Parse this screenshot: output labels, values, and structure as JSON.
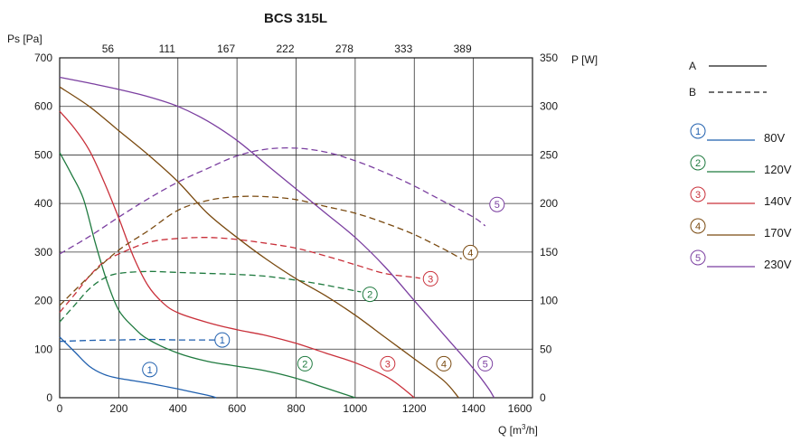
{
  "chart_data": {
    "type": "line",
    "title": "BCS 315L",
    "xlabel_prefix": "Q [m",
    "xlabel_sup": "3",
    "xlabel_suffix": "/h]",
    "ylabel_left": "Ps [Pa]",
    "ylabel_right": "P [W]",
    "xlim": [
      0,
      1600
    ],
    "ylim_left": [
      0,
      700
    ],
    "ylim_right": [
      0,
      350
    ],
    "grid": true,
    "x_ticks": [
      "0",
      "200",
      "400",
      "600",
      "800",
      "1000",
      "1200",
      "1400",
      "1600"
    ],
    "x_tick_values": [
      0,
      200,
      400,
      600,
      800,
      1000,
      1200,
      1400,
      1600
    ],
    "y_left_ticks": [
      "0",
      "100",
      "200",
      "300",
      "400",
      "500",
      "600",
      "700"
    ],
    "y_right_ticks": [
      "0",
      "50",
      "100",
      "150",
      "200",
      "250",
      "300",
      "350"
    ],
    "top_axis_ticks": [
      "56",
      "111",
      "167",
      "222",
      "278",
      "333",
      "389"
    ],
    "top_axis_tick_positions": [
      200,
      400,
      600,
      800,
      1000,
      1200,
      1400
    ],
    "legend_line_styles": [
      {
        "label": "A",
        "style": "solid"
      },
      {
        "label": "B",
        "style": "dashed"
      }
    ],
    "series": [
      {
        "marker": "1",
        "name": "80V",
        "color": "#1f5fae",
        "pressure": [
          [
            0,
            125
          ],
          [
            50,
            95
          ],
          [
            100,
            65
          ],
          [
            150,
            48
          ],
          [
            200,
            40
          ],
          [
            300,
            30
          ],
          [
            400,
            18
          ],
          [
            500,
            5
          ],
          [
            530,
            0
          ]
        ],
        "pressure_label": [
          305,
          58
        ],
        "power": [
          [
            0,
            58
          ],
          [
            100,
            59
          ],
          [
            200,
            59.5
          ],
          [
            300,
            60
          ],
          [
            400,
            59.5
          ],
          [
            500,
            59.5
          ],
          [
            530,
            59.5
          ]
        ],
        "power_label": [
          550,
          59.5
        ]
      },
      {
        "marker": "2",
        "name": "120V",
        "color": "#1f7a3f",
        "pressure": [
          [
            0,
            505
          ],
          [
            40,
            460
          ],
          [
            80,
            410
          ],
          [
            120,
            320
          ],
          [
            160,
            240
          ],
          [
            200,
            180
          ],
          [
            250,
            145
          ],
          [
            300,
            120
          ],
          [
            400,
            92
          ],
          [
            500,
            75
          ],
          [
            600,
            65
          ],
          [
            700,
            55
          ],
          [
            800,
            40
          ],
          [
            900,
            20
          ],
          [
            1000,
            0
          ]
        ],
        "pressure_label": [
          830,
          70
        ],
        "power": [
          [
            0,
            78
          ],
          [
            50,
            95
          ],
          [
            100,
            112
          ],
          [
            150,
            123
          ],
          [
            200,
            128
          ],
          [
            300,
            130
          ],
          [
            400,
            129
          ],
          [
            500,
            128
          ],
          [
            600,
            127
          ],
          [
            700,
            125
          ],
          [
            800,
            121
          ],
          [
            900,
            116
          ],
          [
            1000,
            110
          ],
          [
            1020,
            109
          ]
        ],
        "power_label": [
          1050,
          106.5
        ]
      },
      {
        "marker": "3",
        "name": "140V",
        "color": "#c9303a",
        "pressure": [
          [
            0,
            590
          ],
          [
            50,
            555
          ],
          [
            100,
            510
          ],
          [
            150,
            445
          ],
          [
            200,
            370
          ],
          [
            250,
            290
          ],
          [
            300,
            230
          ],
          [
            350,
            195
          ],
          [
            400,
            175
          ],
          [
            500,
            155
          ],
          [
            600,
            140
          ],
          [
            700,
            128
          ],
          [
            800,
            112
          ],
          [
            900,
            92
          ],
          [
            1000,
            72
          ],
          [
            1100,
            45
          ],
          [
            1150,
            25
          ],
          [
            1200,
            0
          ]
        ],
        "pressure_label": [
          1110,
          70
        ],
        "power": [
          [
            0,
            88
          ],
          [
            50,
            106
          ],
          [
            100,
            125
          ],
          [
            150,
            140
          ],
          [
            200,
            148
          ],
          [
            300,
            160
          ],
          [
            400,
            164
          ],
          [
            500,
            165
          ],
          [
            600,
            163
          ],
          [
            700,
            159
          ],
          [
            800,
            154
          ],
          [
            900,
            146
          ],
          [
            1000,
            137
          ],
          [
            1100,
            128
          ],
          [
            1200,
            124
          ],
          [
            1220,
            123
          ]
        ],
        "power_label": [
          1255,
          122.5
        ]
      },
      {
        "marker": "4",
        "name": "170V",
        "color": "#7a4a10",
        "pressure": [
          [
            0,
            640
          ],
          [
            100,
            600
          ],
          [
            200,
            550
          ],
          [
            300,
            500
          ],
          [
            400,
            445
          ],
          [
            500,
            380
          ],
          [
            600,
            330
          ],
          [
            700,
            285
          ],
          [
            800,
            245
          ],
          [
            900,
            210
          ],
          [
            1000,
            170
          ],
          [
            1100,
            125
          ],
          [
            1200,
            80
          ],
          [
            1300,
            35
          ],
          [
            1350,
            0
          ]
        ],
        "pressure_label": [
          1300,
          70
        ],
        "power": [
          [
            0,
            95
          ],
          [
            100,
            125
          ],
          [
            200,
            152
          ],
          [
            300,
            172
          ],
          [
            400,
            193
          ],
          [
            500,
            203
          ],
          [
            600,
            207
          ],
          [
            700,
            207
          ],
          [
            800,
            204
          ],
          [
            900,
            197
          ],
          [
            1000,
            190
          ],
          [
            1100,
            180
          ],
          [
            1200,
            168
          ],
          [
            1300,
            153
          ],
          [
            1360,
            143
          ]
        ],
        "power_label": [
          1390,
          149.5
        ]
      },
      {
        "marker": "5",
        "name": "230V",
        "color": "#7b3fa0",
        "pressure": [
          [
            0,
            660
          ],
          [
            100,
            648
          ],
          [
            200,
            635
          ],
          [
            300,
            620
          ],
          [
            400,
            600
          ],
          [
            500,
            570
          ],
          [
            600,
            530
          ],
          [
            700,
            480
          ],
          [
            800,
            430
          ],
          [
            900,
            380
          ],
          [
            1000,
            330
          ],
          [
            1100,
            270
          ],
          [
            1200,
            200
          ],
          [
            1300,
            130
          ],
          [
            1400,
            60
          ],
          [
            1450,
            20
          ],
          [
            1470,
            0
          ]
        ],
        "pressure_label": [
          1440,
          70
        ],
        "power": [
          [
            0,
            148
          ],
          [
            100,
            166
          ],
          [
            200,
            186
          ],
          [
            300,
            205
          ],
          [
            400,
            222
          ],
          [
            500,
            236
          ],
          [
            600,
            249
          ],
          [
            700,
            256
          ],
          [
            800,
            257
          ],
          [
            900,
            253
          ],
          [
            1000,
            244
          ],
          [
            1100,
            232
          ],
          [
            1200,
            218
          ],
          [
            1300,
            202
          ],
          [
            1400,
            186
          ],
          [
            1440,
            177
          ]
        ],
        "power_label": [
          1480,
          199
        ]
      }
    ]
  }
}
